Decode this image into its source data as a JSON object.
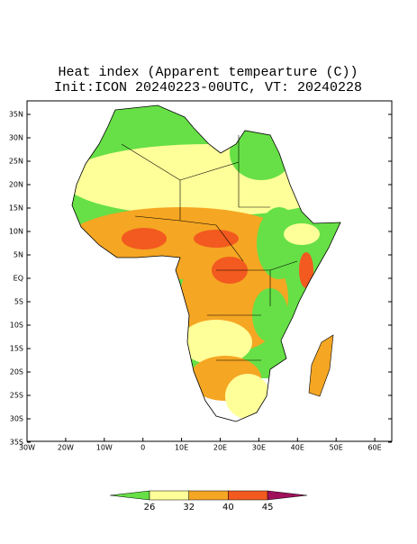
{
  "header": {
    "title": "Heat index (Apparent tempearture (C))",
    "subtitle": "Init:ICON 20240223-00UTC, VT: 20240228"
  },
  "map": {
    "lat_labels": [
      "35N",
      "30N",
      "25N",
      "20N",
      "15N",
      "10N",
      "5N",
      "EQ",
      "5S",
      "10S",
      "15S",
      "20S",
      "25S",
      "30S",
      "35S"
    ],
    "lon_labels": [
      "30W",
      "20W",
      "10W",
      "0",
      "10E",
      "20E",
      "30E",
      "40E",
      "50E",
      "60E"
    ]
  },
  "colorbar": {
    "levels": [
      26,
      32,
      40,
      45
    ],
    "colors": [
      "#66e046",
      "#ffff99",
      "#f5a623",
      "#f25a1f",
      "#a0105a"
    ]
  }
}
